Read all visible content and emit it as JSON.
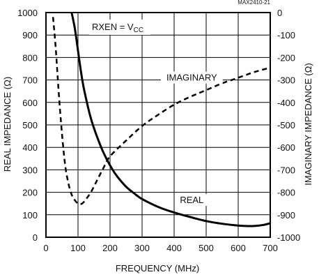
{
  "chart_data": {
    "type": "line",
    "code": "MAX2410-21",
    "condition": {
      "main": "RXEN = V",
      "sub": "CC"
    },
    "xlabel": "FREQUENCY (MHz)",
    "ylabel_left": "REAL IMPEDANCE (Ω)",
    "ylabel_right": "IMAGINARY IMPEDANCE (Ω)",
    "xlim": [
      0,
      700
    ],
    "ylim_left": [
      0,
      1000
    ],
    "ylim_right": [
      -1000,
      0
    ],
    "grid": true,
    "x_ticks": [
      "0",
      "100",
      "200",
      "300",
      "400",
      "500",
      "600",
      "700"
    ],
    "y_left_ticks": [
      "0",
      "100",
      "200",
      "300",
      "400",
      "500",
      "600",
      "700",
      "800",
      "900",
      "1000"
    ],
    "y_right_ticks": [
      "0",
      "-100",
      "-200",
      "-300",
      "-400",
      "-500",
      "-600",
      "-700",
      "-800",
      "-900",
      "-1000"
    ],
    "series": [
      {
        "name": "REAL",
        "axis": "left",
        "style": "solid",
        "x": [
          80,
          90,
          100,
          110,
          120,
          140,
          160,
          180,
          200,
          220,
          250,
          280,
          300,
          350,
          400,
          450,
          500,
          550,
          600,
          625,
          650,
          680,
          700
        ],
        "y": [
          1000,
          930,
          830,
          730,
          650,
          530,
          445,
          375,
          320,
          275,
          225,
          190,
          170,
          135,
          110,
          90,
          72,
          60,
          52,
          50,
          50,
          55,
          62
        ]
      },
      {
        "name": "IMAGINARY",
        "axis": "right",
        "style": "dashed",
        "x": [
          22,
          30,
          40,
          50,
          60,
          70,
          80,
          90,
          100,
          110,
          120,
          140,
          160,
          180,
          200,
          250,
          300,
          350,
          400,
          450,
          500,
          550,
          600,
          650,
          700
        ],
        "y": [
          -20,
          -150,
          -360,
          -540,
          -680,
          -760,
          -810,
          -835,
          -850,
          -852,
          -840,
          -800,
          -745,
          -690,
          -640,
          -570,
          -505,
          -455,
          -410,
          -375,
          -345,
          -315,
          -290,
          -265,
          -245
        ]
      }
    ],
    "annotations": [
      {
        "text": "IMAGINARY",
        "x": 455,
        "y_left": 700
      },
      {
        "text": "REAL",
        "x": 455,
        "y_left": 155
      }
    ]
  }
}
